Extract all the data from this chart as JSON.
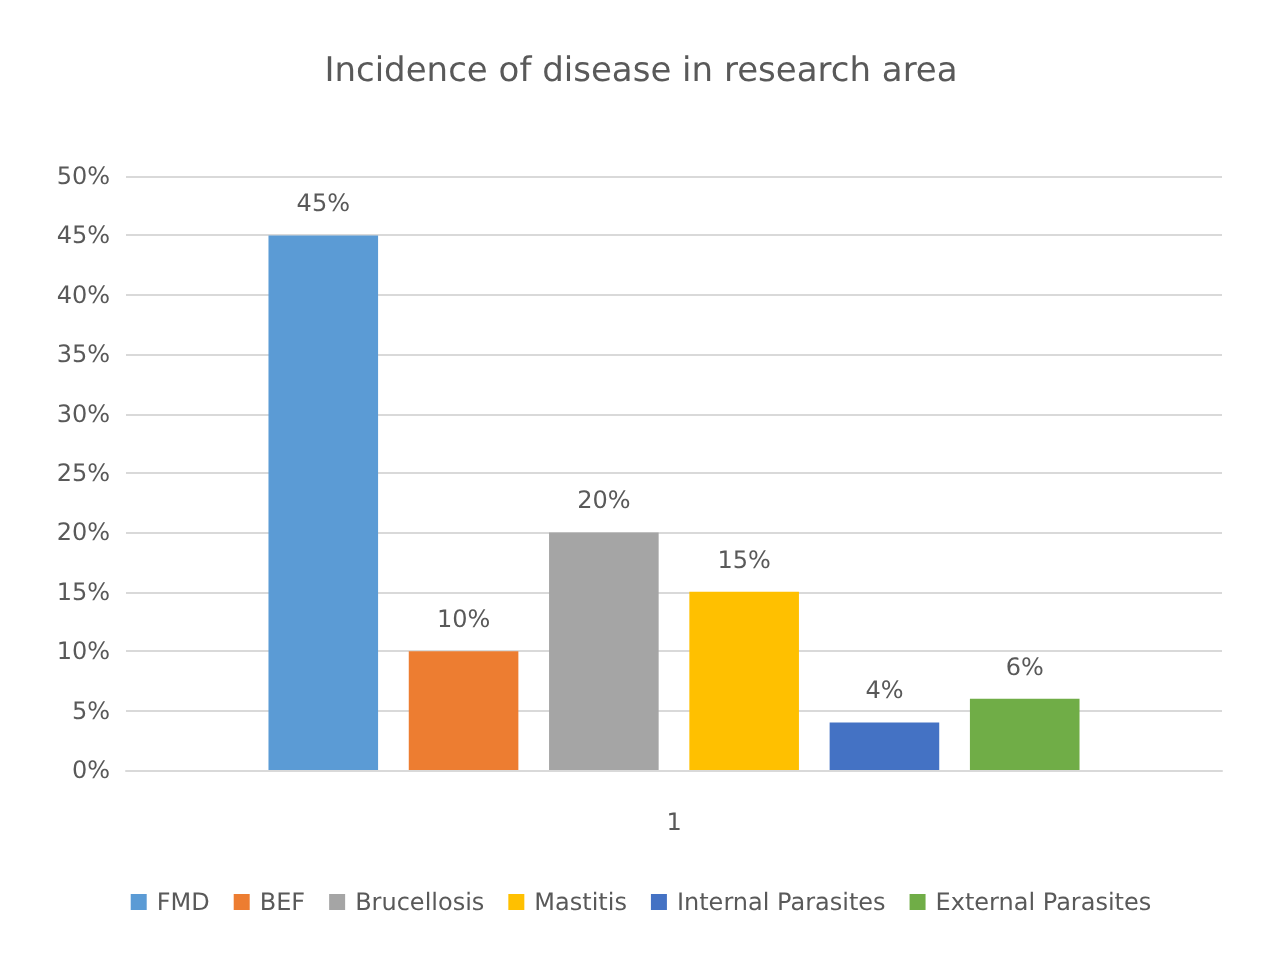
{
  "chart_data": {
    "type": "bar",
    "title": "Incidence of disease in research area",
    "categories": [
      "1"
    ],
    "series": [
      {
        "name": "FMD",
        "color": "#5b9bd5",
        "values": [
          45
        ],
        "value_labels": [
          "45%"
        ]
      },
      {
        "name": "BEF",
        "color": "#ed7d31",
        "values": [
          10
        ],
        "value_labels": [
          "10%"
        ]
      },
      {
        "name": "Brucellosis",
        "color": "#a5a5a5",
        "values": [
          20
        ],
        "value_labels": [
          "20%"
        ]
      },
      {
        "name": "Mastitis",
        "color": "#ffc000",
        "values": [
          15
        ],
        "value_labels": [
          "15%"
        ]
      },
      {
        "name": "Internal Parasites",
        "color": "#4472c4",
        "values": [
          4
        ],
        "value_labels": [
          "4%"
        ]
      },
      {
        "name": "External Parasites",
        "color": "#70ad47",
        "values": [
          6
        ],
        "value_labels": [
          "6%"
        ]
      }
    ],
    "ylim": [
      0,
      50
    ],
    "yticks": [
      {
        "value": 0,
        "label": "0%"
      },
      {
        "value": 5,
        "label": "5%"
      },
      {
        "value": 10,
        "label": "10%"
      },
      {
        "value": 15,
        "label": "15%"
      },
      {
        "value": 20,
        "label": "20%"
      },
      {
        "value": 25,
        "label": "25%"
      },
      {
        "value": 30,
        "label": "30%"
      },
      {
        "value": 35,
        "label": "35%"
      },
      {
        "value": 40,
        "label": "40%"
      },
      {
        "value": 45,
        "label": "45%"
      },
      {
        "value": 50,
        "label": "50%"
      }
    ],
    "grid": "y",
    "legend": "bottom"
  }
}
